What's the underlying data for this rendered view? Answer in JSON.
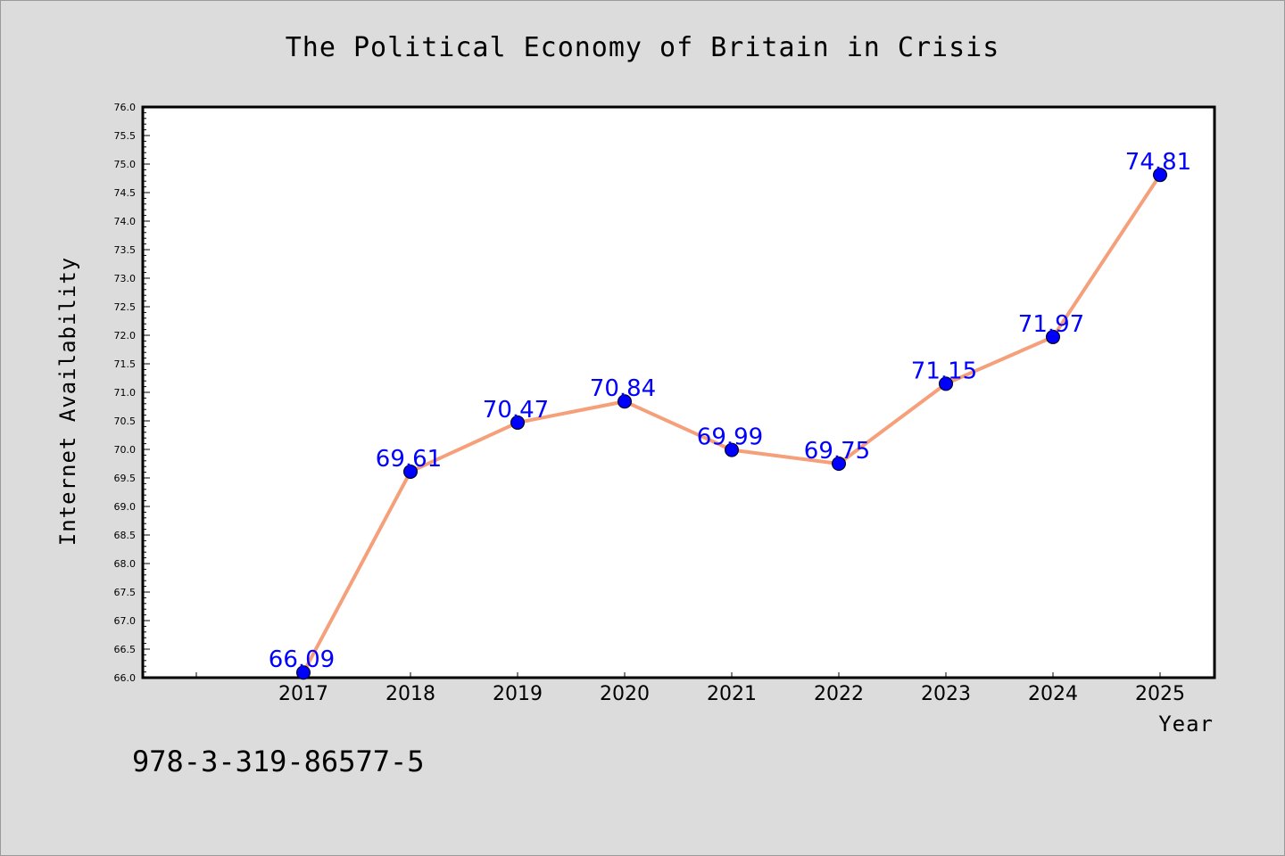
{
  "colors": {
    "background": "#dcdcdc",
    "plot_background": "#ffffff",
    "line": "#f5a07a",
    "marker": "#0000ff",
    "label": "#0000ff"
  },
  "isbn": "978-3-319-86577-5",
  "chart_data": {
    "type": "line",
    "title": "The Political Economy of Britain in Crisis",
    "xlabel": "Year",
    "ylabel": "Internet Availability",
    "categories": [
      "2017",
      "2018",
      "2019",
      "2020",
      "2021",
      "2022",
      "2023",
      "2024",
      "2025"
    ],
    "values": [
      66.09,
      69.61,
      70.47,
      70.84,
      69.99,
      69.75,
      71.15,
      71.97,
      74.81
    ],
    "data_labels": [
      "66.09",
      "69.61",
      "70.47",
      "70.84",
      "69.99",
      "69.75",
      "71.15",
      "71.97",
      "74.81"
    ],
    "ylim": [
      66.0,
      76.0
    ],
    "ytick_labels": [
      "66.0",
      "66.5",
      "67.0",
      "67.5",
      "68.0",
      "68.5",
      "69.0",
      "69.5",
      "70.0",
      "70.5",
      "71.0",
      "71.5",
      "72.0",
      "72.5",
      "73.0",
      "73.5",
      "74.0",
      "74.5",
      "75.0",
      "75.5",
      "76.0"
    ],
    "grid": false,
    "legend": "none"
  }
}
